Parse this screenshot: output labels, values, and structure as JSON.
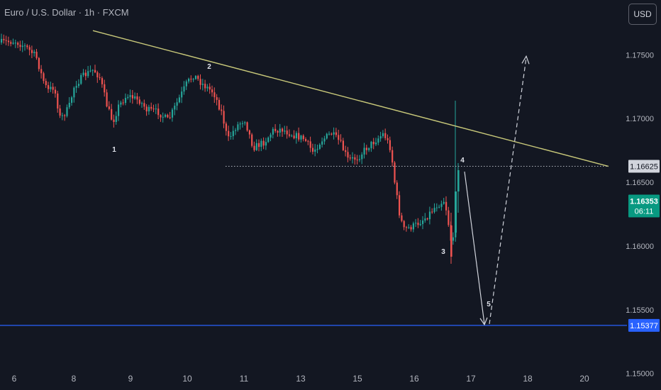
{
  "title": "Euro / U.S. Dollar · 1h · FXCM",
  "currency_button": "USD",
  "colors": {
    "background": "#131722",
    "up": "#26a69a",
    "down": "#ef5350",
    "trendline": "#c9c97a",
    "support": "#2962ff",
    "price_badge": "#089981",
    "text": "#d1d4dc",
    "axis_text": "#b2b5be"
  },
  "chart_data": {
    "type": "candlestick",
    "symbol": "Euro / U.S. Dollar",
    "interval": "1h",
    "y_ticks": [
      "1.17500",
      "1.17000",
      "1.16500",
      "1.16000",
      "1.15500",
      "1.15000"
    ],
    "y_range": [
      1.1487,
      1.1793
    ],
    "x_ticks": [
      "6",
      "8",
      "9",
      "10",
      "11",
      "13",
      "15",
      "16",
      "17",
      "18",
      "20"
    ],
    "badges": [
      {
        "name": "level-1.16625",
        "value": 1.16625,
        "label": "1.16625",
        "style": "gray"
      },
      {
        "name": "last-price",
        "value": 1.16353,
        "label": "1.16353",
        "sub": "06:11",
        "style": "green"
      },
      {
        "name": "support",
        "value": 1.15377,
        "label": "1.15377",
        "style": "blue"
      }
    ],
    "current_price": 1.16353,
    "countdown": "06:11",
    "support_level": 1.15377,
    "dotted_level": 1.16625,
    "trendline": {
      "from": [
        "8",
        1.1769
      ],
      "to": [
        "20",
        1.16625
      ]
    },
    "wave_labels": [
      "1",
      "2",
      "3",
      "4",
      "5"
    ],
    "key_points": [
      {
        "x": "8",
        "open": 1.174,
        "high": 1.1769,
        "low": 1.1732,
        "close": 1.1755
      },
      {
        "x": "9",
        "open": 1.171,
        "high": 1.1728,
        "low": 1.169,
        "close": 1.17
      },
      {
        "x": "10",
        "open": 1.1735,
        "high": 1.1752,
        "low": 1.172,
        "close": 1.174
      },
      {
        "x": "11",
        "open": 1.1675,
        "high": 1.169,
        "low": 1.1655,
        "close": 1.168
      },
      {
        "x": "15",
        "open": 1.1688,
        "high": 1.1695,
        "low": 1.167,
        "close": 1.1678
      },
      {
        "x": "16",
        "open": 1.16,
        "high": 1.1612,
        "low": 1.159,
        "close": 1.1605
      },
      {
        "x": "17",
        "open": 1.158,
        "high": 1.172,
        "low": 1.1562,
        "close": 1.16353
      }
    ],
    "projection": [
      {
        "point": "4",
        "x": "17",
        "y": 1.1665
      },
      {
        "point": "5",
        "x": "17",
        "y": 1.15377
      },
      {
        "point": "target",
        "x": "18",
        "y": 1.175
      }
    ]
  }
}
